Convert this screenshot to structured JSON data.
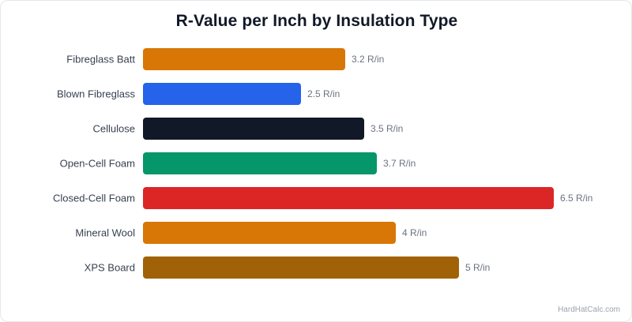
{
  "chart_data": {
    "type": "bar",
    "orientation": "horizontal",
    "title": "R-Value per Inch by Insulation Type",
    "categories": [
      "Fibreglass Batt",
      "Blown Fibreglass",
      "Cellulose",
      "Open-Cell Foam",
      "Closed-Cell Foam",
      "Mineral Wool",
      "XPS Board"
    ],
    "values": [
      3.2,
      2.5,
      3.5,
      3.7,
      6.5,
      4,
      5
    ],
    "value_labels": [
      "3.2 R/in",
      "2.5 R/in",
      "3.5 R/in",
      "3.7 R/in",
      "6.5 R/in",
      "4 R/in",
      "5 R/in"
    ],
    "colors": [
      "#d97706",
      "#2563eb",
      "#111827",
      "#059669",
      "#dc2626",
      "#d97706",
      "#a16207"
    ],
    "xlabel": "",
    "ylabel": "",
    "xlim": [
      0,
      6.5
    ],
    "grid": false,
    "legend": "none"
  },
  "watermark": "HardHatCalc.com"
}
